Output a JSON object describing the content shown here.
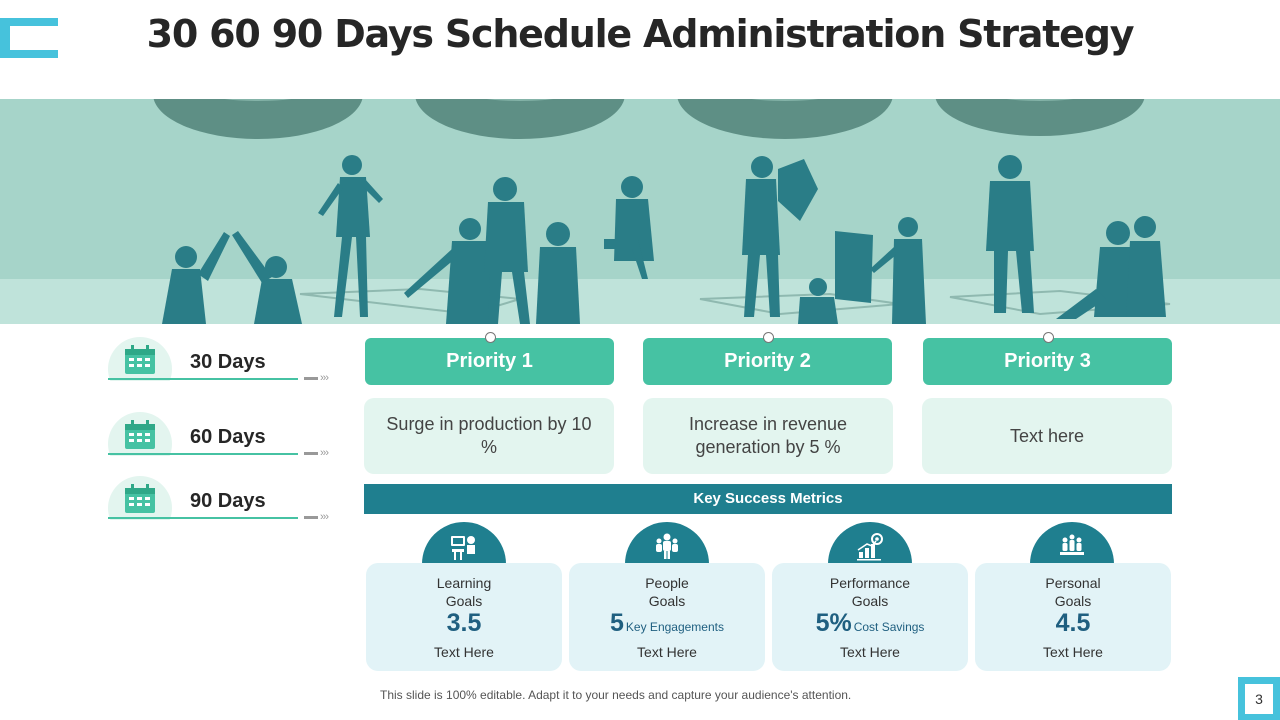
{
  "slide": {
    "title": "30 60 90 Days Schedule Administration Strategy",
    "page_number": "3",
    "footer_note": "This slide is 100% editable. Adapt it to your needs and capture your audience's attention."
  },
  "days": [
    {
      "label": "30 Days",
      "icon": "calendar-icon"
    },
    {
      "label": "60 Days",
      "icon": "calendar-icon"
    },
    {
      "label": "90 Days",
      "icon": "calendar-icon"
    }
  ],
  "priorities": [
    {
      "heading": "Priority  1",
      "text": "Surge in production by 10 %"
    },
    {
      "heading": "Priority  2",
      "text": "Increase in revenue generation  by 5 %"
    },
    {
      "heading": "Priority  3",
      "text": "Text here"
    }
  ],
  "metrics": {
    "heading": "Key Success Metrics",
    "items": [
      {
        "title_line1": "Learning",
        "title_line2": "Goals",
        "value": "3.5",
        "value_suffix": "",
        "text": "Text Here",
        "icon": "learning-icon"
      },
      {
        "title_line1": "People",
        "title_line2": "Goals",
        "value": "5",
        "value_suffix": "Key Engagements",
        "text": "Text Here",
        "icon": "people-icon"
      },
      {
        "title_line1": "Performance",
        "title_line2": "Goals",
        "value": "5%",
        "value_suffix": "Cost Savings",
        "text": "Text Here",
        "icon": "performance-chart-icon"
      },
      {
        "title_line1": "Personal",
        "title_line2": "Goals",
        "value": "4.5",
        "value_suffix": "",
        "text": "Text Here",
        "icon": "personal-team-icon"
      }
    ]
  },
  "colors": {
    "accent_green": "#46c2a3",
    "teal_dark": "#1f7f8f",
    "light_green": "#e3f5ef",
    "light_blue": "#e2f3f7",
    "banner_bg": "#a6d4c9",
    "silhouette": "#2a7d87"
  }
}
